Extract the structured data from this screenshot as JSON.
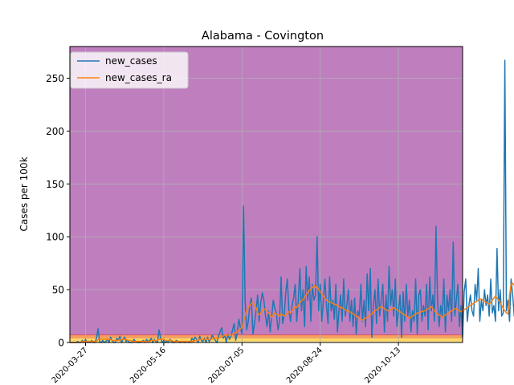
{
  "chart_data": {
    "type": "line",
    "title": "Alabama - Covington",
    "ylabel": "Cases per 100k",
    "xlabel": "",
    "x_start": "2020-03-17",
    "x_end": "2020-11-23",
    "xlim": [
      "2020-03-17",
      "2020-11-23"
    ],
    "ylim": [
      0,
      280
    ],
    "x_ticks": [
      "2020-03-27",
      "2020-05-16",
      "2020-07-05",
      "2020-08-24",
      "2020-10-13"
    ],
    "y_ticks": [
      0,
      50,
      100,
      150,
      200,
      250
    ],
    "grid": true,
    "legend_position": "top-left",
    "background_color": "#bf7fbf",
    "bands": [
      {
        "from": 0,
        "to": 1,
        "color": "#fff8b0"
      },
      {
        "from": 1,
        "to": 4,
        "color": "#ffd966"
      },
      {
        "from": 4,
        "to": 7,
        "color": "#f4a060"
      },
      {
        "from": 7,
        "to": 7.6,
        "color": "#e03a5a"
      }
    ],
    "series": [
      {
        "name": "new_cases",
        "color": "#1f77b4",
        "values": [
          0,
          0,
          0,
          0,
          0,
          1,
          0,
          0,
          2,
          0,
          3,
          0,
          1,
          0,
          2,
          0,
          0,
          4,
          13,
          1,
          0,
          2,
          0,
          1,
          3,
          0,
          5,
          2,
          0,
          0,
          4,
          2,
          6,
          0,
          3,
          5,
          1,
          2,
          0,
          0,
          0,
          3,
          1,
          0,
          0,
          0,
          1,
          2,
          0,
          3,
          1,
          2,
          4,
          0,
          3,
          1,
          0,
          12,
          4,
          0,
          2,
          0,
          1,
          0,
          3,
          1,
          0,
          0,
          2,
          1,
          0,
          0,
          1,
          0,
          0,
          1,
          0,
          0,
          4,
          2,
          5,
          3,
          0,
          6,
          2,
          1,
          4,
          0,
          5,
          1,
          3,
          7,
          4,
          2,
          0,
          6,
          10,
          14,
          4,
          7,
          0,
          8,
          3,
          6,
          12,
          18,
          2,
          9,
          22,
          14,
          8,
          129,
          40,
          12,
          20,
          35,
          42,
          8,
          18,
          30,
          45,
          20,
          38,
          47,
          40,
          25,
          15,
          30,
          10,
          25,
          40,
          32,
          28,
          12,
          20,
          62,
          18,
          25,
          48,
          60,
          30,
          20,
          35,
          42,
          55,
          20,
          40,
          70,
          30,
          50,
          15,
          72,
          40,
          62,
          20,
          55,
          40,
          45,
          100,
          30,
          55,
          20,
          40,
          60,
          35,
          18,
          62,
          30,
          40,
          22,
          55,
          10,
          30,
          45,
          20,
          60,
          25,
          35,
          50,
          20,
          40,
          15,
          42,
          8,
          30,
          25,
          55,
          20,
          40,
          15,
          65,
          30,
          70,
          5,
          35,
          50,
          18,
          60,
          25,
          40,
          55,
          10,
          45,
          20,
          72,
          35,
          50,
          25,
          60,
          15,
          30,
          45,
          5,
          48,
          20,
          55,
          25,
          40,
          10,
          30,
          20,
          60,
          8,
          45,
          50,
          20,
          35,
          25,
          55,
          12,
          62,
          30,
          45,
          20,
          110,
          40,
          15,
          35,
          25,
          60,
          10,
          45,
          30,
          50,
          20,
          95,
          25,
          40,
          55,
          15,
          35,
          5,
          48,
          60,
          20,
          35,
          45,
          30,
          25,
          55,
          40,
          70,
          20,
          40,
          30,
          50,
          35,
          45,
          25,
          60,
          28,
          35,
          20,
          89,
          30,
          50,
          25,
          28,
          267,
          30,
          40,
          20,
          60,
          45,
          25,
          55,
          10,
          30,
          62,
          40
        ]
      },
      {
        "name": "new_cases_ra",
        "color": "#ff7f0e",
        "values": [
          0,
          0,
          0,
          0,
          0,
          0,
          0,
          0,
          1,
          1,
          1,
          1,
          1,
          1,
          1,
          1,
          1,
          1,
          3,
          3,
          3,
          3,
          3,
          3,
          3,
          3,
          3,
          2,
          2,
          2,
          2,
          2,
          2,
          3,
          3,
          3,
          3,
          2,
          2,
          2,
          1,
          1,
          1,
          1,
          1,
          1,
          1,
          1,
          1,
          1,
          1,
          1,
          2,
          2,
          2,
          2,
          2,
          3,
          3,
          3,
          3,
          2,
          2,
          2,
          2,
          2,
          1,
          1,
          1,
          1,
          1,
          1,
          1,
          1,
          1,
          1,
          1,
          1,
          1,
          1,
          2,
          2,
          2,
          3,
          3,
          3,
          3,
          3,
          3,
          3,
          3,
          3,
          4,
          4,
          4,
          4,
          5,
          6,
          6,
          7,
          7,
          7,
          7,
          7,
          8,
          9,
          9,
          10,
          12,
          13,
          14,
          20,
          25,
          30,
          33,
          35,
          37,
          38,
          35,
          33,
          28,
          26,
          28,
          30,
          32,
          31,
          30,
          28,
          26,
          24,
          26,
          28,
          27,
          26,
          25,
          27,
          26,
          25,
          26,
          28,
          29,
          28,
          30,
          32,
          34,
          33,
          35,
          38,
          39,
          41,
          42,
          45,
          47,
          50,
          50,
          52,
          54,
          52,
          53,
          50,
          48,
          46,
          44,
          42,
          40,
          39,
          38,
          38,
          37,
          36,
          36,
          35,
          34,
          33,
          33,
          32,
          31,
          30,
          30,
          29,
          28,
          27,
          26,
          25,
          24,
          23,
          22,
          21,
          22,
          23,
          24,
          25,
          26,
          27,
          29,
          30,
          31,
          32,
          33,
          34,
          33,
          32,
          31,
          30,
          30,
          31,
          32,
          33,
          32,
          31,
          30,
          29,
          28,
          27,
          26,
          25,
          24,
          23,
          24,
          25,
          26,
          27,
          28,
          28,
          29,
          29,
          30,
          30,
          31,
          32,
          33,
          34,
          32,
          30,
          28,
          27,
          26,
          25,
          24,
          25,
          26,
          27,
          28,
          29,
          30,
          31,
          32,
          32,
          31,
          30,
          29,
          30,
          31,
          32,
          33,
          34,
          35,
          36,
          37,
          38,
          39,
          40,
          41,
          41,
          40,
          39,
          38,
          37,
          36,
          38,
          40,
          42,
          44,
          42,
          40,
          38,
          35,
          32,
          30,
          28,
          27,
          45,
          55,
          56,
          54,
          52,
          50,
          48,
          40,
          25,
          22,
          24,
          26
        ]
      }
    ]
  }
}
